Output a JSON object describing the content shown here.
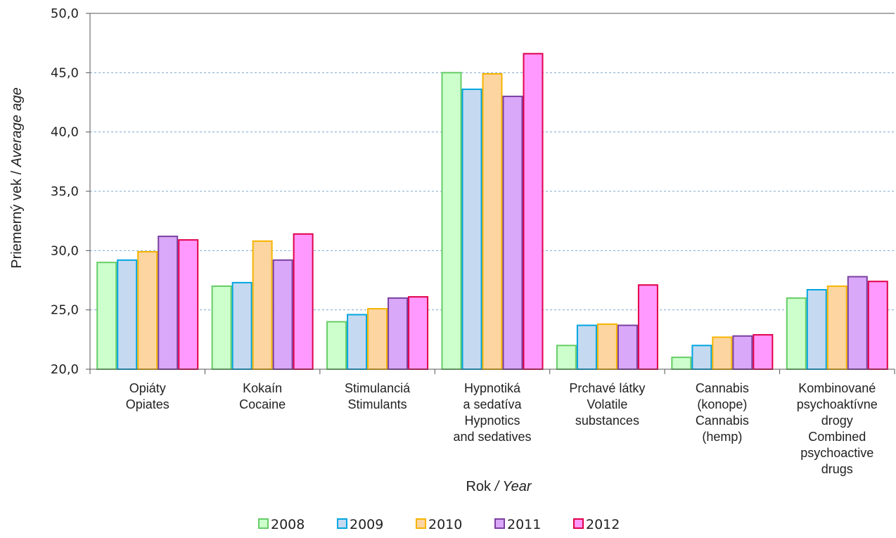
{
  "chart_data": {
    "type": "bar",
    "categories": [
      [
        "Opiáty",
        "Opiates"
      ],
      [
        "Kokaín",
        "Cocaine"
      ],
      [
        "Stimulanciá",
        "Stimulants"
      ],
      [
        "Hypnotiká",
        "a sedatíva",
        "Hypnotics",
        "and sedatives"
      ],
      [
        "Prchavé látky",
        "Volatile",
        "substances"
      ],
      [
        "Cannabis",
        "(konope)",
        "Cannabis",
        "(hemp)"
      ],
      [
        "Kombinované",
        "psychoaktívne",
        "drogy",
        "Combined",
        "psychoactive",
        "drugs"
      ]
    ],
    "series": [
      {
        "name": "2008",
        "fill": "#ccffcc",
        "stroke": "#66cc66",
        "values": [
          29.0,
          27.0,
          24.0,
          45.0,
          22.0,
          21.0,
          26.0
        ]
      },
      {
        "name": "2009",
        "fill": "#c5d9f1",
        "stroke": "#00a6e0",
        "values": [
          29.2,
          27.3,
          24.6,
          43.6,
          23.7,
          22.0,
          26.7
        ]
      },
      {
        "name": "2010",
        "fill": "#fcd5a0",
        "stroke": "#f6b400",
        "values": [
          29.9,
          30.8,
          25.1,
          44.9,
          23.8,
          22.7,
          27.0
        ]
      },
      {
        "name": "2011",
        "fill": "#d9a8f8",
        "stroke": "#7b3fa0",
        "values": [
          31.2,
          29.2,
          26.0,
          43.0,
          23.7,
          22.8,
          27.8
        ]
      },
      {
        "name": "2012",
        "fill": "#ff99ff",
        "stroke": "#e0004a",
        "values": [
          30.9,
          31.4,
          26.1,
          46.6,
          27.1,
          22.9,
          27.4
        ]
      }
    ],
    "ylim": [
      20.0,
      50.0
    ],
    "yticks": [
      "20,0",
      "25,0",
      "30,0",
      "35,0",
      "40,0",
      "45,0",
      "50,0"
    ],
    "ylabel": {
      "plain": "Priemerný vek / ",
      "italic": "Average age"
    },
    "xlabel": {
      "plain": "Rok ",
      "italic": "/ Year"
    },
    "title": "",
    "grid": true,
    "legend_position": "bottom"
  }
}
